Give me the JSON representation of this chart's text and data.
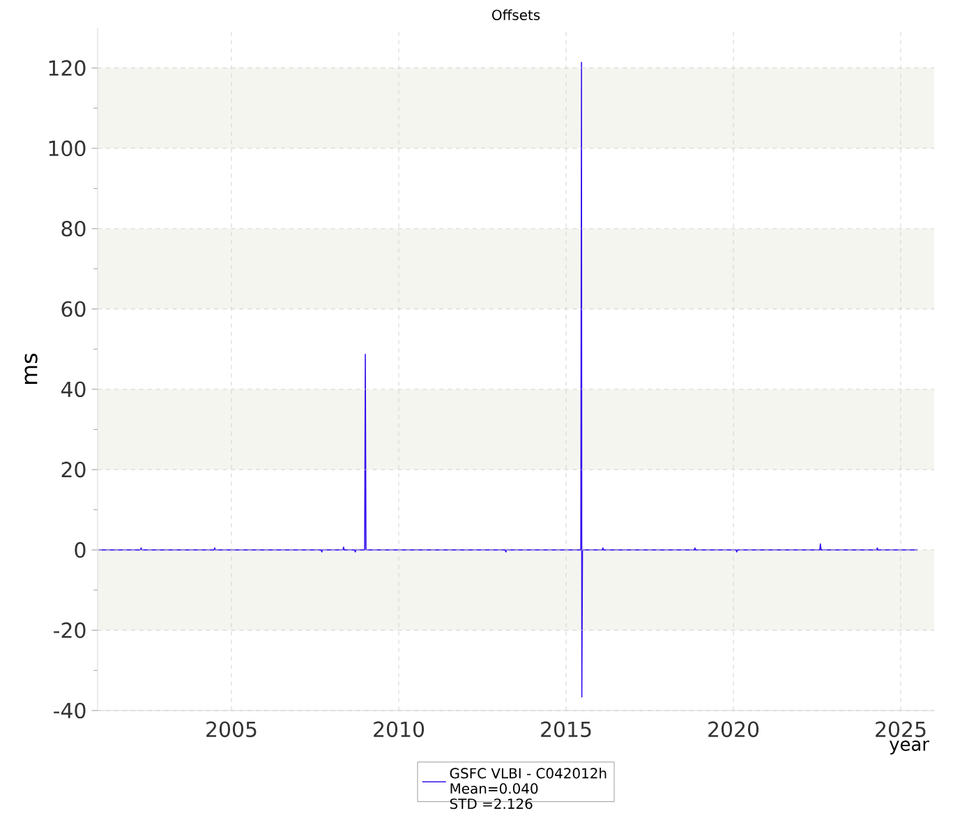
{
  "chart_data": {
    "type": "line",
    "title": "Offsets",
    "xlabel": "year",
    "ylabel": "ms",
    "x": [
      2001.03,
      2002.28,
      2002.3,
      2002.32,
      2004.48,
      2004.5,
      2004.52,
      2007.68,
      2007.7,
      2007.72,
      2008.33,
      2008.35,
      2008.37,
      2008.68,
      2008.7,
      2008.72,
      2008.98,
      2009.0,
      2009.02,
      2013.18,
      2013.2,
      2013.22,
      2015.44,
      2015.46,
      2015.47,
      2015.49,
      2016.08,
      2016.1,
      2016.12,
      2018.83,
      2018.85,
      2018.87,
      2020.08,
      2020.1,
      2020.12,
      2022.58,
      2022.6,
      2022.62,
      2024.28,
      2024.3,
      2024.32,
      2025.5
    ],
    "series": [
      {
        "name": "GSFC VLBI - C042012h",
        "color": "#3311ee",
        "values": [
          0,
          0,
          0.5,
          0,
          0,
          0.5,
          0,
          0,
          -0.5,
          0,
          0,
          0.7,
          0,
          0,
          -0.5,
          0,
          0,
          48.7,
          0,
          0,
          -0.5,
          0,
          0,
          121.4,
          -36.6,
          0,
          0,
          0.5,
          0,
          0,
          0.5,
          0,
          0,
          -0.5,
          0,
          0,
          1.5,
          0,
          0,
          0.5,
          0,
          0
        ]
      }
    ],
    "annotations": [
      "Mean=0.040",
      "STD =2.126"
    ],
    "xlim": [
      2001,
      2026
    ],
    "xticks": [
      2005,
      2010,
      2015,
      2020,
      2025
    ],
    "ylim": [
      -40,
      130
    ],
    "yticks": [
      -40,
      -20,
      0,
      20,
      40,
      60,
      80,
      100,
      120
    ],
    "grid": true,
    "legend": "bottom",
    "bands": [
      {
        "axis": "y",
        "from": 100,
        "to": 120,
        "color": "#f5f5f0"
      },
      {
        "axis": "y",
        "from": 60,
        "to": 80,
        "color": "#f5f5f0"
      },
      {
        "axis": "y",
        "from": 20,
        "to": 40,
        "color": "#f5f5f0"
      },
      {
        "axis": "y",
        "from": -20,
        "to": 0,
        "color": "#f5f5f0"
      }
    ]
  }
}
